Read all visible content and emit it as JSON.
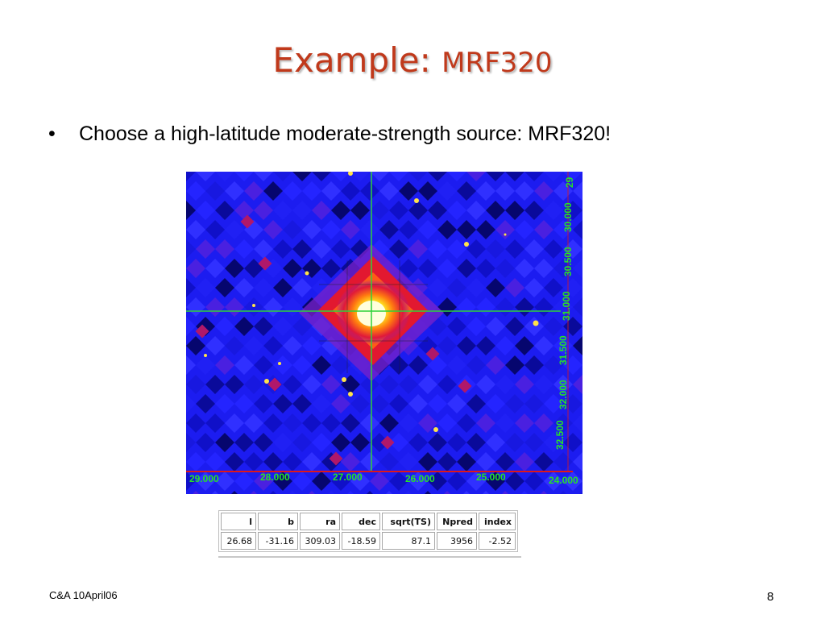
{
  "slide": {
    "title_main": "Example: ",
    "title_sub": "MRF320",
    "bullet_symbol": "•",
    "bullet_text": "Choose a high-latitude moderate-strength source: MRF320!",
    "footer_left": "C&A 10April06",
    "page_number": "8"
  },
  "skymap": {
    "x_ticks": [
      "29.000",
      "28.000",
      "27.000",
      "26.000",
      "25.000",
      "24.000"
    ],
    "y_ticks": [
      "29",
      "30.000",
      "30.500",
      "31.000",
      "31.500",
      "32.000",
      "32.500"
    ],
    "colors": {
      "background": "#1c1cf0",
      "crosshair": "#2fd23a",
      "axis_labels": "#27e227",
      "axis_line": "#e01818"
    }
  },
  "results_table": {
    "headers": [
      "l",
      "b",
      "ra",
      "dec",
      "sqrt(TS)",
      "Npred",
      "index"
    ],
    "rows": [
      [
        "26.68",
        "-31.16",
        "309.03",
        "-18.59",
        "87.1",
        "3956",
        "-2.52"
      ]
    ]
  }
}
